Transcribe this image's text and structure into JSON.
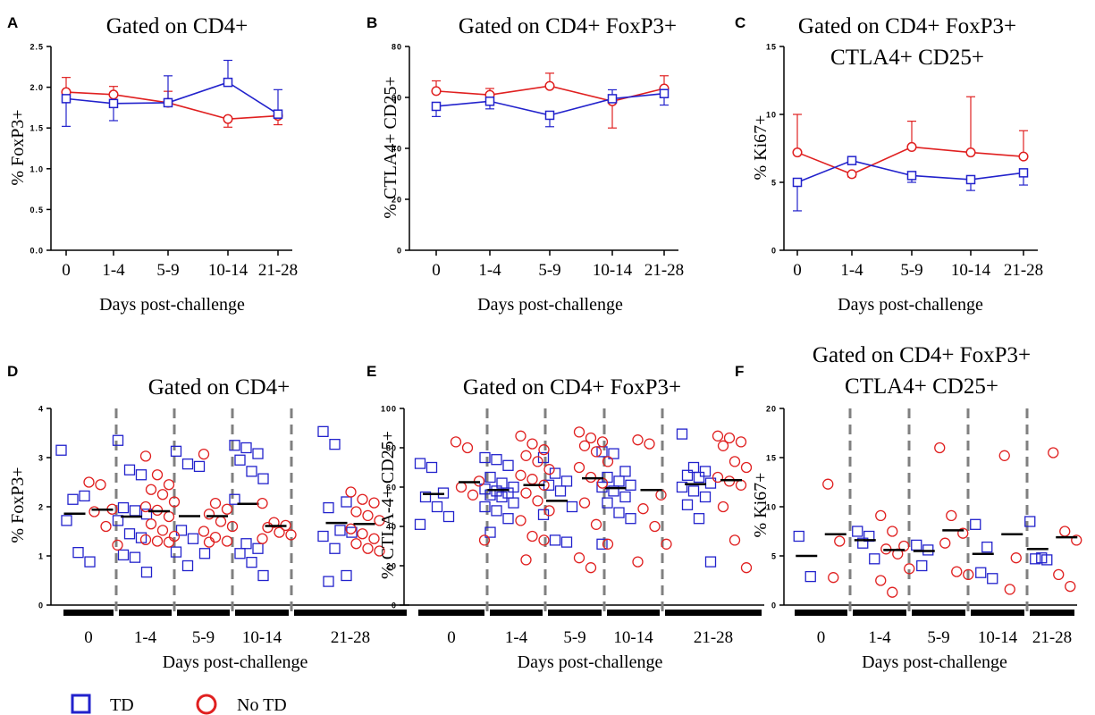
{
  "colors": {
    "td": "#2222cc",
    "no_td": "#e02020",
    "axis": "#000000",
    "divider": "#808080"
  },
  "legend": {
    "td_label": "TD",
    "no_td_label": "No TD"
  },
  "chart_data": [
    {
      "panel": "A",
      "type": "line",
      "title": [
        "Gated on CD4+"
      ],
      "xlabel": "Days post-challenge",
      "ylabel": "% FoxP3+",
      "categories": [
        "0",
        "1-4",
        "5-9",
        "10-14",
        "21-28"
      ],
      "ylim": [
        0,
        2.5
      ],
      "yticks": [
        "0.0",
        "0.5",
        "1.0",
        "1.5",
        "2.0",
        "2.5"
      ],
      "series": [
        {
          "name": "TD",
          "marker": "square",
          "values": [
            1.86,
            1.8,
            1.81,
            2.06,
            1.67
          ],
          "error": [
            0.34,
            0.21,
            0.33,
            0.27,
            0.3
          ]
        },
        {
          "name": "No TD",
          "marker": "circle",
          "values": [
            1.94,
            1.91,
            1.81,
            1.61,
            1.65
          ],
          "error": [
            0.18,
            0.1,
            0.14,
            0.1,
            0.11
          ]
        }
      ]
    },
    {
      "panel": "B",
      "type": "line",
      "title": [
        "Gated on CD4+ FoxP3+"
      ],
      "xlabel": "Days post-challenge",
      "ylabel": "% CTLA4+ CD25+",
      "categories": [
        "0",
        "1-4",
        "5-9",
        "10-14",
        "21-28"
      ],
      "ylim": [
        0,
        80
      ],
      "yticks": [
        "0",
        "20",
        "40",
        "60",
        "80"
      ],
      "series": [
        {
          "name": "TD",
          "marker": "square",
          "values": [
            56.5,
            58.5,
            53.0,
            59.5,
            61.5
          ],
          "error": [
            4.0,
            3.0,
            4.5,
            3.5,
            4.5
          ]
        },
        {
          "name": "No TD",
          "marker": "circle",
          "values": [
            62.5,
            61.0,
            64.5,
            58.5,
            63.5
          ],
          "error": [
            4.0,
            2.5,
            5.0,
            10.5,
            5.0
          ]
        }
      ]
    },
    {
      "panel": "C",
      "type": "line",
      "title": [
        "Gated on CD4+ FoxP3+",
        "CTLA4+ CD25+"
      ],
      "xlabel": "Days post-challenge",
      "ylabel": "% Ki67+",
      "categories": [
        "0",
        "1-4",
        "5-9",
        "10-14",
        "21-28"
      ],
      "ylim": [
        0,
        15
      ],
      "yticks": [
        "0",
        "5",
        "10",
        "15"
      ],
      "series": [
        {
          "name": "TD",
          "marker": "square",
          "values": [
            5.0,
            6.6,
            5.5,
            5.2,
            5.7
          ],
          "error": [
            2.1,
            0.3,
            0.5,
            0.8,
            0.9
          ]
        },
        {
          "name": "No TD",
          "marker": "circle",
          "values": [
            7.2,
            5.6,
            7.6,
            7.2,
            6.9
          ],
          "error": [
            2.8,
            0.2,
            1.9,
            4.1,
            1.9
          ]
        }
      ]
    },
    {
      "panel": "D",
      "type": "scatter",
      "title": [
        "Gated on CD4+"
      ],
      "xlabel": "Days post-challenge",
      "ylabel": "% FoxP3+",
      "categories": [
        "0",
        "1-4",
        "5-9",
        "10-14",
        "21-28"
      ],
      "ylim": [
        0,
        4
      ],
      "yticks": [
        "0",
        "1",
        "2",
        "3",
        "4"
      ],
      "series": [
        {
          "name": "TD",
          "marker": "square",
          "medians": [
            1.86,
            1.8,
            1.81,
            2.06,
            1.67
          ],
          "groups": [
            [
              3.15,
              2.15,
              2.22,
              1.72,
              1.07,
              0.88
            ],
            [
              3.35,
              2.75,
              2.65,
              1.98,
              1.92,
              1.85,
              1.72,
              1.45,
              1.37,
              1.02,
              0.97,
              0.67
            ],
            [
              3.13,
              2.87,
              2.82,
              1.52,
              1.35,
              1.05,
              1.08,
              0.8
            ],
            [
              3.25,
              3.2,
              3.08,
              2.95,
              2.72,
              2.57,
              2.15,
              1.25,
              1.15,
              1.05,
              0.87,
              0.6
            ],
            [
              3.53,
              3.27,
              2.1,
              1.98,
              1.52,
              1.48,
              1.4,
              1.15,
              0.6,
              0.48
            ]
          ]
        },
        {
          "name": "No TD",
          "marker": "circle",
          "medians": [
            1.94,
            1.91,
            1.81,
            1.61,
            1.65
          ],
          "groups": [
            [
              2.5,
              2.45,
              1.95,
              1.9,
              1.6,
              1.22
            ],
            [
              3.03,
              2.65,
              2.45,
              2.35,
              2.25,
              2.1,
              2.0,
              1.93,
              1.8,
              1.65,
              1.52,
              1.4,
              1.33,
              1.3,
              1.28
            ],
            [
              3.07,
              2.07,
              1.95,
              1.85,
              1.7,
              1.6,
              1.5,
              1.38,
              1.3,
              1.28
            ],
            [
              2.07,
              1.68,
              1.62,
              1.58,
              1.48,
              1.43,
              1.35
            ],
            [
              2.3,
              2.15,
              2.08,
              1.9,
              1.82,
              1.72,
              1.55,
              1.45,
              1.35,
              1.25,
              1.15,
              1.1
            ]
          ]
        }
      ]
    },
    {
      "panel": "E",
      "type": "scatter",
      "title": [
        "Gated on CD4+ FoxP3+"
      ],
      "xlabel": "Days post-challenge",
      "ylabel": "% CTLA-4+ CD25+",
      "categories": [
        "0",
        "1-4",
        "5-9",
        "10-14",
        "21-28"
      ],
      "ylim": [
        0,
        100
      ],
      "yticks": [
        "0",
        "20",
        "40",
        "60",
        "80",
        "100"
      ],
      "series": [
        {
          "name": "TD",
          "marker": "square",
          "medians": [
            56.5,
            58.5,
            53.0,
            59.5,
            61.5
          ],
          "groups": [
            [
              72,
              70,
              57,
              55,
              50,
              45,
              41
            ],
            [
              75,
              74,
              71,
              65,
              62,
              60,
              59,
              58,
              57,
              56,
              55,
              52,
              50,
              48,
              44,
              37
            ],
            [
              75,
              67,
              63,
              61,
              58,
              50,
              46,
              33,
              32
            ],
            [
              78,
              77,
              68,
              65,
              63,
              61,
              60,
              58,
              55,
              52,
              47,
              44,
              31
            ],
            [
              87,
              70,
              68,
              66,
              65,
              62,
              60,
              58,
              55,
              51,
              44,
              22
            ]
          ]
        },
        {
          "name": "No TD",
          "marker": "circle",
          "medians": [
            62.5,
            61.0,
            64.5,
            58.5,
            63.5
          ],
          "groups": [
            [
              83,
              80,
              63,
              60,
              56,
              33
            ],
            [
              86,
              82,
              79,
              76,
              73,
              69,
              66,
              64,
              61,
              57,
              53,
              48,
              43,
              35,
              33,
              23
            ],
            [
              88,
              85,
              83,
              81,
              78,
              73,
              70,
              65,
              62,
              52,
              41,
              31,
              24,
              19
            ],
            [
              84,
              82,
              56,
              49,
              40,
              31,
              22
            ],
            [
              86,
              85,
              83,
              81,
              73,
              70,
              65,
              63,
              61,
              50,
              33,
              19
            ]
          ]
        }
      ]
    },
    {
      "panel": "F",
      "type": "scatter",
      "title": [
        "Gated on CD4+ FoxP3+",
        "CTLA4+ CD25+"
      ],
      "xlabel": "Days post-challenge",
      "ylabel": "% Ki67+",
      "categories": [
        "0",
        "1-4",
        "5-9",
        "10-14",
        "21-28"
      ],
      "ylim": [
        0,
        20
      ],
      "yticks": [
        "0",
        "5",
        "10",
        "15",
        "20"
      ],
      "series": [
        {
          "name": "TD",
          "marker": "square",
          "medians": [
            5.0,
            6.6,
            5.5,
            5.2,
            5.7
          ],
          "groups": [
            [
              7.0,
              2.9
            ],
            [
              7.5,
              7.0,
              6.3,
              4.7
            ],
            [
              6.1,
              5.6,
              4.0
            ],
            [
              8.2,
              5.9,
              3.3,
              2.7
            ],
            [
              8.5,
              4.8,
              4.7,
              4.6
            ]
          ]
        },
        {
          "name": "No TD",
          "marker": "circle",
          "medians": [
            7.2,
            5.6,
            7.6,
            7.2,
            6.9
          ],
          "groups": [
            [
              12.3,
              6.5,
              2.8
            ],
            [
              9.1,
              7.5,
              6.0,
              5.7,
              5.2,
              3.7,
              2.5,
              1.3
            ],
            [
              16.0,
              9.1,
              7.3,
              6.3,
              3.4,
              3.1
            ],
            [
              15.2,
              4.8,
              1.6
            ],
            [
              15.5,
              7.5,
              6.6,
              3.1,
              1.9
            ]
          ]
        }
      ]
    }
  ]
}
